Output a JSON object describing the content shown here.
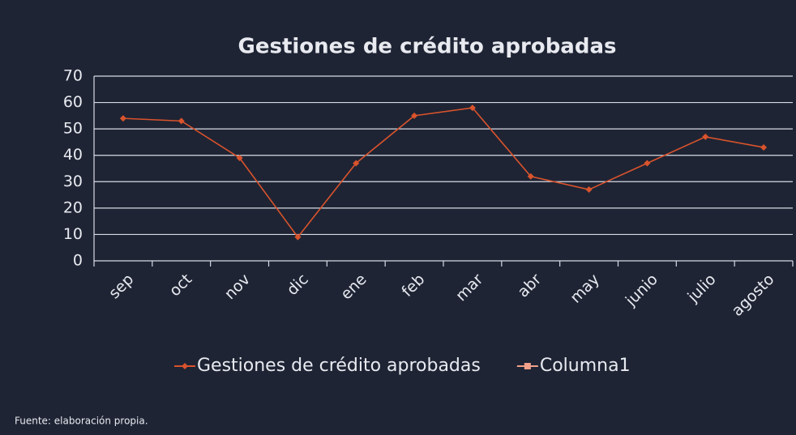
{
  "chart_data": {
    "type": "line",
    "title": "Gestiones de crédito aprobadas",
    "categories": [
      "sep",
      "oct",
      "nov",
      "dic",
      "ene",
      "feb",
      "mar",
      "abr",
      "may",
      "junio",
      "julio",
      "agosto"
    ],
    "series": [
      {
        "name": "Gestiones de crédito aprobadas",
        "color": "#d9532c",
        "values": [
          54,
          53,
          39,
          9,
          37,
          55,
          58,
          32,
          27,
          37,
          47,
          43
        ]
      },
      {
        "name": "Columna1",
        "color": "#f2a08a",
        "values": [
          null,
          null,
          null,
          null,
          null,
          null,
          null,
          null,
          null,
          null,
          null,
          null
        ]
      }
    ],
    "ylim": [
      0,
      70
    ],
    "yticks": [
      0,
      10,
      20,
      30,
      40,
      50,
      60,
      70
    ],
    "grid": true,
    "source": "Fuente: elaboración propia."
  }
}
